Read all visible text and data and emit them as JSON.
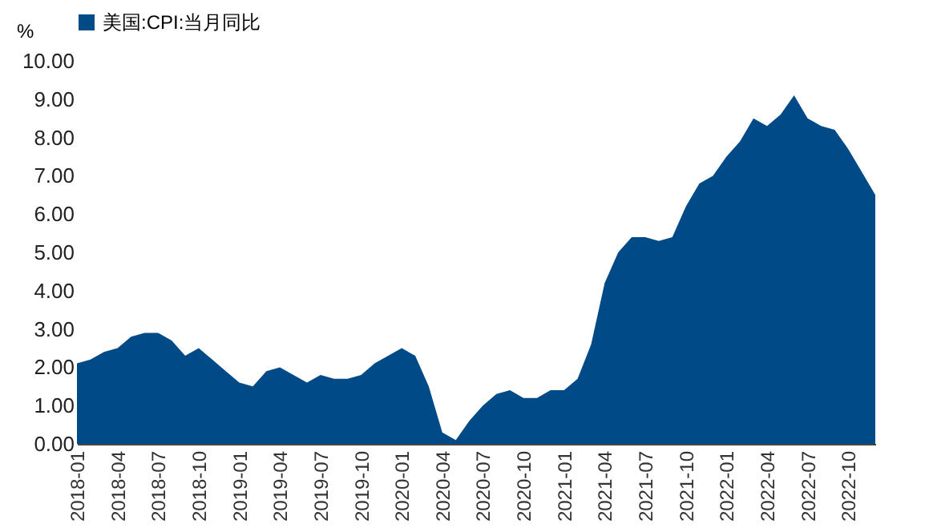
{
  "chart_data": {
    "type": "area",
    "ylabel": "%",
    "legend": "top",
    "categories": [
      "2018-01",
      null,
      null,
      "2018-04",
      null,
      null,
      "2018-07",
      null,
      null,
      "2018-10",
      null,
      null,
      "2019-01",
      null,
      null,
      "2019-04",
      null,
      null,
      "2019-07",
      null,
      null,
      "2019-10",
      null,
      null,
      "2020-01",
      null,
      null,
      "2020-04",
      null,
      null,
      "2020-07",
      null,
      null,
      "2020-10",
      null,
      null,
      "2021-01",
      null,
      null,
      "2021-04",
      null,
      null,
      "2021-07",
      null,
      null,
      "2021-10",
      null,
      null,
      "2022-01",
      null,
      null,
      "2022-04",
      null,
      null,
      "2022-07",
      null,
      null,
      "2022-10",
      null,
      null
    ],
    "series": [
      {
        "name": "美国:CPI:当月同比",
        "color": "#004a87",
        "values": [
          2.1,
          2.2,
          2.4,
          2.5,
          2.8,
          2.9,
          2.9,
          2.7,
          2.3,
          2.5,
          2.2,
          1.9,
          1.6,
          1.5,
          1.9,
          2.0,
          1.8,
          1.6,
          1.8,
          1.7,
          1.7,
          1.8,
          2.1,
          2.3,
          2.5,
          2.3,
          1.5,
          0.3,
          0.1,
          0.6,
          1.0,
          1.3,
          1.4,
          1.2,
          1.2,
          1.4,
          1.4,
          1.7,
          2.6,
          4.2,
          5.0,
          5.4,
          5.4,
          5.3,
          5.4,
          6.2,
          6.8,
          7.0,
          7.5,
          7.9,
          8.5,
          8.3,
          8.6,
          9.1,
          8.5,
          8.3,
          8.2,
          7.7,
          7.1,
          6.5
        ]
      }
    ],
    "ylim": [
      0,
      10
    ],
    "yticks": [
      {
        "value": 0,
        "label": "0.00"
      },
      {
        "value": 1,
        "label": "1.00"
      },
      {
        "value": 2,
        "label": "2.00"
      },
      {
        "value": 3,
        "label": "3.00"
      },
      {
        "value": 4,
        "label": "4.00"
      },
      {
        "value": 5,
        "label": "5.00"
      },
      {
        "value": 6,
        "label": "6.00"
      },
      {
        "value": 7,
        "label": "7.00"
      },
      {
        "value": 8,
        "label": "8.00"
      },
      {
        "value": 9,
        "label": "9.00"
      },
      {
        "value": 10,
        "label": "10.00"
      }
    ]
  }
}
